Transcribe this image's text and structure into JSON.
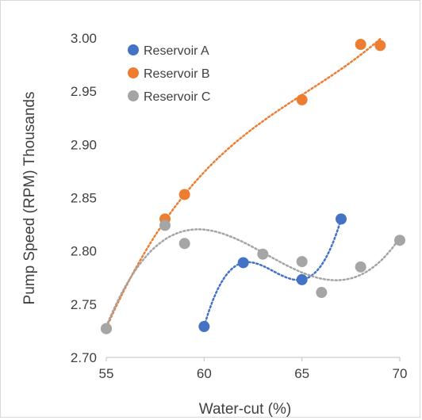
{
  "chart_data": {
    "type": "scatter",
    "xlabel": "Water-cut (%)",
    "ylabel": "Pump Speed (RPM) Thousands",
    "xlim": [
      55,
      70
    ],
    "ylim": [
      2.7,
      3.0
    ],
    "xticks": [
      "55",
      "60",
      "65",
      "70"
    ],
    "yticks": [
      "2.70",
      "2.75",
      "2.80",
      "2.85",
      "2.90",
      "2.95",
      "3.00"
    ],
    "grid": false,
    "legend_position": "top-left",
    "trendline": "polynomial, dotted",
    "series": [
      {
        "name": "Reservoir A",
        "color": "#4472c4",
        "x": [
          60,
          62,
          65,
          67
        ],
        "y": [
          2.729,
          2.789,
          2.773,
          2.83
        ]
      },
      {
        "name": "Reservoir B",
        "color": "#ed7d31",
        "x": [
          55,
          58,
          59,
          65,
          68,
          69
        ],
        "y": [
          2.727,
          2.83,
          2.853,
          2.942,
          2.994,
          2.993
        ]
      },
      {
        "name": "Reservoir C",
        "color": "#a5a5a5",
        "x": [
          55,
          58,
          59,
          63,
          65,
          66,
          68,
          70
        ],
        "y": [
          2.727,
          2.824,
          2.807,
          2.797,
          2.79,
          2.761,
          2.785,
          2.81
        ]
      }
    ]
  }
}
